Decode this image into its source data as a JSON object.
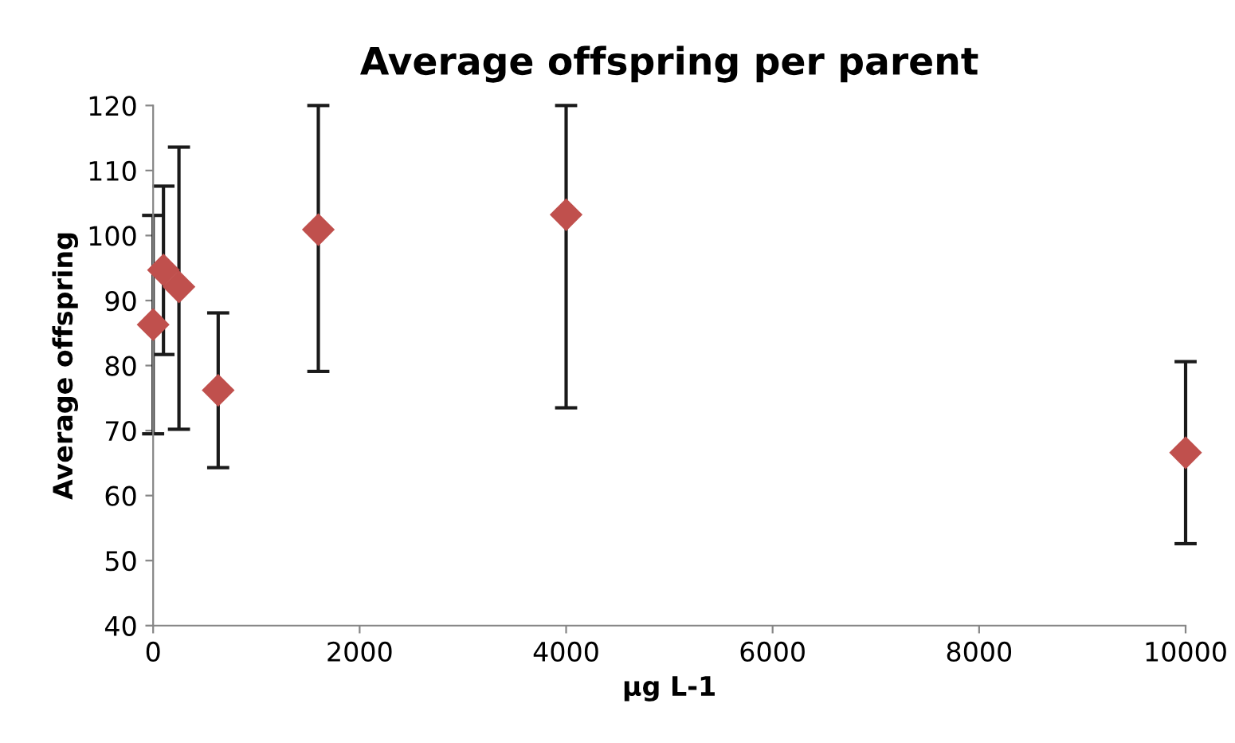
{
  "chart_data": {
    "type": "scatter",
    "title": "Average offspring per parent",
    "xlabel": "µg L-1",
    "ylabel": "Average offspring",
    "x": [
      0,
      100,
      250,
      630,
      1600,
      4000,
      10000
    ],
    "values": [
      86.3,
      94.7,
      92.1,
      76.2,
      100.9,
      103.2,
      66.6
    ],
    "errors": [
      [
        69.5,
        103.1
      ],
      [
        81.7,
        107.6
      ],
      [
        70.2,
        113.6
      ],
      [
        64.3,
        88.1
      ],
      [
        79.1,
        120
      ],
      [
        73.5,
        120
      ],
      [
        52.6,
        80.6
      ]
    ],
    "color": "#c0504d",
    "marker": "diamond",
    "xlim": [
      0,
      10000
    ],
    "xticks": [
      0,
      2000,
      4000,
      6000,
      8000,
      10000
    ],
    "ylim": [
      40,
      120
    ],
    "yticks": [
      40,
      50,
      60,
      70,
      80,
      90,
      100,
      110,
      120
    ],
    "grid": false,
    "legend": false
  }
}
